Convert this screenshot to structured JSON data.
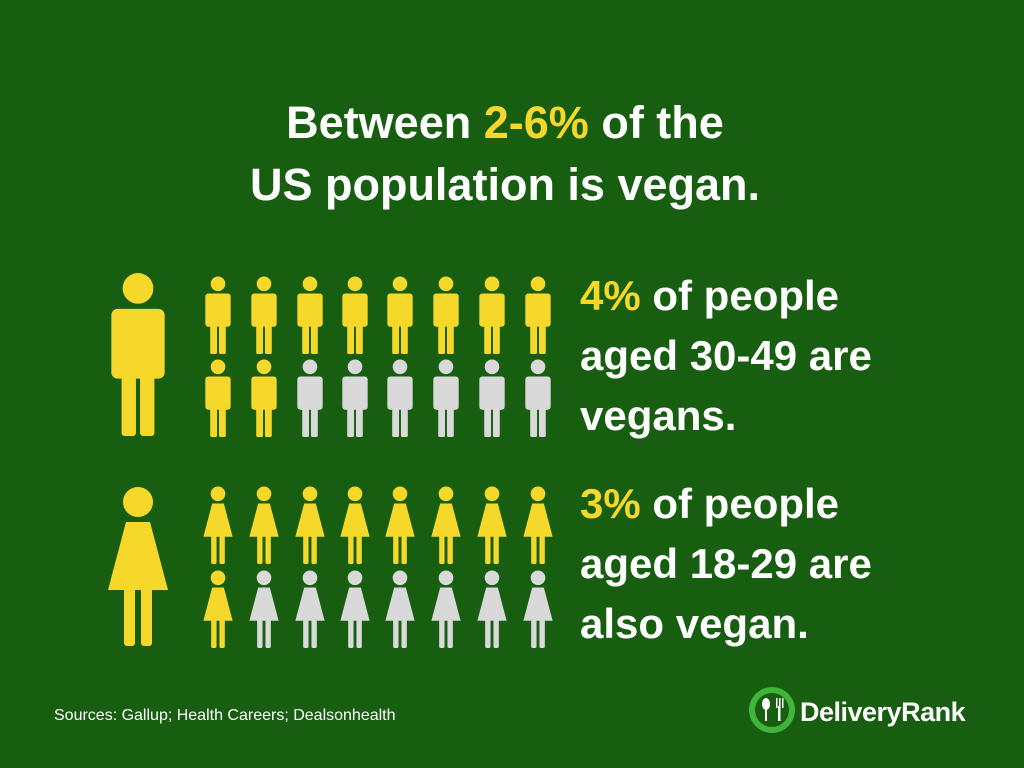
{
  "title": {
    "before": "Between",
    "highlight": "2-6%",
    "after": "of the",
    "line2": "US population is vegan."
  },
  "rows": [
    {
      "highlight": "4%",
      "lines": [
        "of people",
        "aged 30-49 are",
        "vegans."
      ]
    },
    {
      "highlight": "3%",
      "lines": [
        "of people",
        "aged 18-29 are",
        "also vegan."
      ]
    }
  ],
  "sources": "Sources: Gallup; Health Careers; Dealsonhealth",
  "brand": "DeliveryRank"
}
